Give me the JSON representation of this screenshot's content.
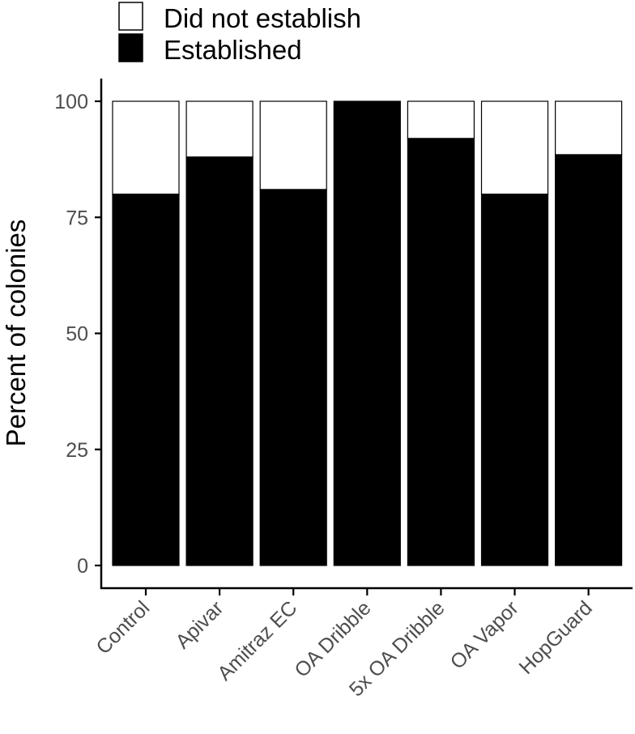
{
  "chart_data": {
    "type": "bar",
    "stacked": true,
    "categories": [
      "Control",
      "Apivar",
      "Amitraz EC",
      "OA Dribble",
      "5x OA Dribble",
      "OA Vapor",
      "HopGuard"
    ],
    "series": [
      {
        "name": "Established",
        "values": [
          80,
          88,
          81,
          100,
          92,
          80,
          88.5
        ],
        "color": "#000000"
      },
      {
        "name": "Did not establish",
        "values": [
          20,
          12,
          19,
          0,
          8,
          20,
          11.5
        ],
        "color": "#ffffff"
      }
    ],
    "legend": {
      "placement": "top-left",
      "entries": [
        "Did not establish",
        "Established"
      ]
    },
    "ylabel": "Percent of colonies",
    "xlabel": "",
    "ylim": [
      0,
      100
    ],
    "yticks": [
      0,
      25,
      50,
      75,
      100
    ],
    "grid": false,
    "colors": {
      "bar_outline": "#000000",
      "axis": "#000000",
      "tick_label": "#4d4d4d"
    }
  }
}
